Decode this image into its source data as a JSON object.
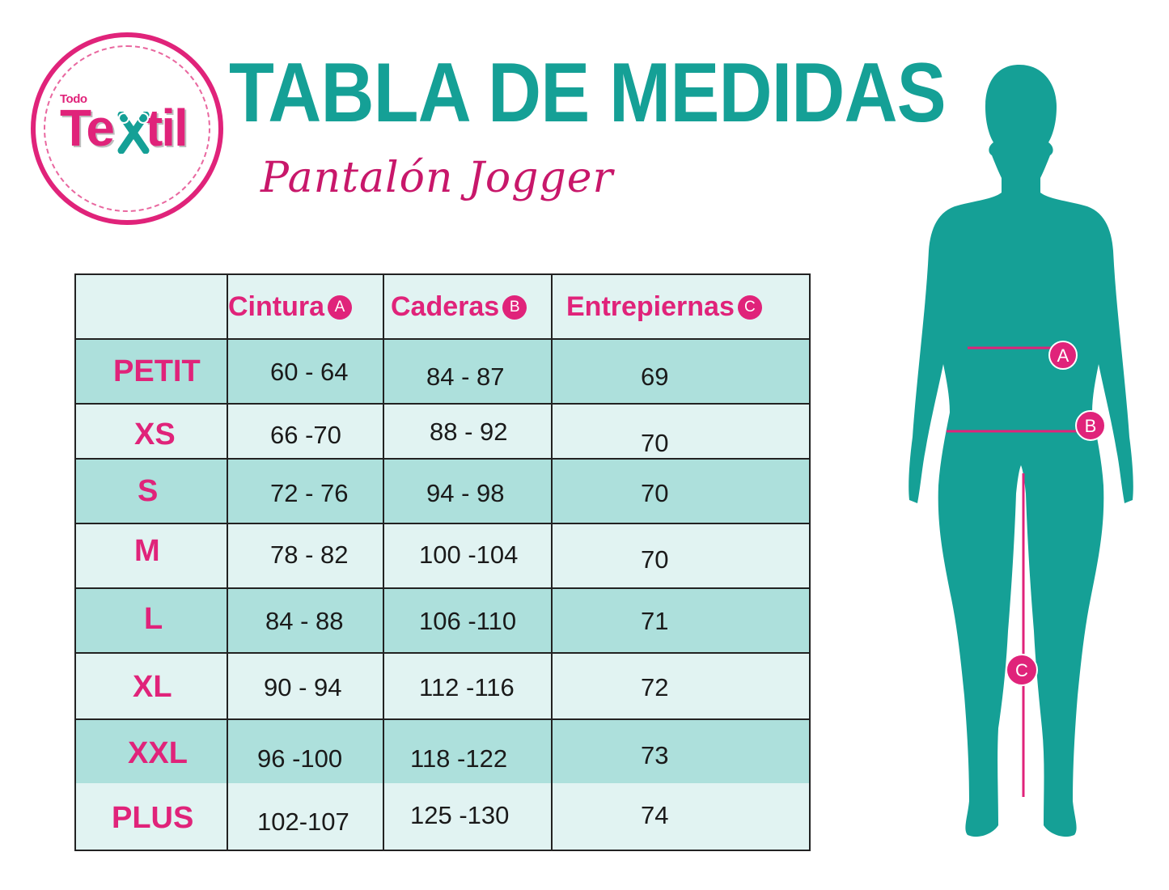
{
  "logo": {
    "small": "Todo",
    "main_left": "Te",
    "main_right": "til"
  },
  "title": "TABLA DE MEDIDAS",
  "subtitle": "Pantalón Jogger",
  "table": {
    "headers": [
      {
        "label": "Cintura",
        "badge": "A"
      },
      {
        "label": "Caderas",
        "badge": "B"
      },
      {
        "label": "Entrepiernas",
        "badge": "C"
      }
    ],
    "rows": [
      {
        "size": "PETIT",
        "cintura": "60 - 64",
        "caderas": "84 - 87",
        "entrepiernas": "69"
      },
      {
        "size": "XS",
        "cintura": "66 -70",
        "caderas": "88 - 92",
        "entrepiernas": "70"
      },
      {
        "size": "S",
        "cintura": "72 - 76",
        "caderas": "94 - 98",
        "entrepiernas": "70"
      },
      {
        "size": "M",
        "cintura": "78 - 82",
        "caderas": "100 -104",
        "entrepiernas": "70"
      },
      {
        "size": "L",
        "cintura": "84 - 88",
        "caderas": "106 -110",
        "entrepiernas": "71"
      },
      {
        "size": "XL",
        "cintura": "90 - 94",
        "caderas": "112 -116",
        "entrepiernas": "72"
      },
      {
        "size": "XXL",
        "cintura": "96 -100",
        "caderas": "118 -122",
        "entrepiernas": "73"
      },
      {
        "size": "PLUS",
        "cintura": "102-107",
        "caderas": "125 -130",
        "entrepiernas": "74"
      }
    ]
  },
  "figure": {
    "markers": [
      "A",
      "B",
      "C"
    ]
  },
  "colors": {
    "teal": "#15a096",
    "pink": "#e0237a",
    "row_dark": "#ade0dc",
    "row_light": "#e1f3f2"
  }
}
